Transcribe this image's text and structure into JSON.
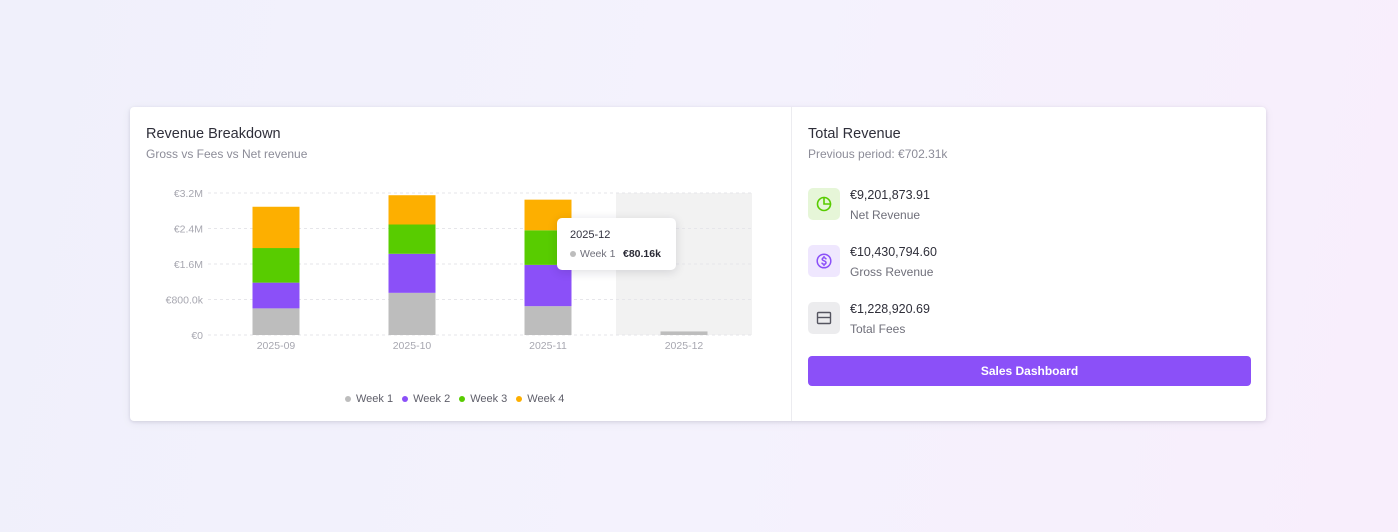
{
  "left": {
    "title": "Revenue Breakdown",
    "subtitle": "Gross vs Fees vs Net revenue"
  },
  "chart_data": {
    "type": "bar",
    "stacked": true,
    "categories": [
      "2025-09",
      "2025-10",
      "2025-11",
      "2025-12"
    ],
    "series": [
      {
        "name": "Week 1",
        "color": "#bdbdbd",
        "values": [
          600,
          950,
          650,
          80.16
        ]
      },
      {
        "name": "Week 2",
        "color": "#8b50f8",
        "values": [
          580,
          880,
          930,
          0
        ]
      },
      {
        "name": "Week 3",
        "color": "#58cc00",
        "values": [
          780,
          660,
          780,
          0
        ]
      },
      {
        "name": "Week 4",
        "color": "#fdaf00",
        "values": [
          930,
          660,
          690,
          0
        ]
      }
    ],
    "y_ticks": [
      "€0",
      "€800.0k",
      "€1.6M",
      "€2.4M",
      "€3.2M"
    ],
    "ylim": [
      0,
      3200
    ],
    "unit": "€k",
    "grid": "horizontal dashed",
    "legend_position": "bottom",
    "highlighted_category": "2025-12"
  },
  "tooltip": {
    "title": "2025-12",
    "label": "Week 1",
    "value": "€80.16k",
    "dot_color": "#bdbdbd"
  },
  "right": {
    "title": "Total Revenue",
    "subtitle": "Previous period: €702.31k",
    "metrics": [
      {
        "value": "€9,201,873.91",
        "label": "Net Revenue",
        "icon": "pie-chart-icon",
        "icon_color": "#58cc00",
        "icon_bg": "#e6f6d8"
      },
      {
        "value": "€10,430,794.60",
        "label": "Gross Revenue",
        "icon": "dollar-coin-icon",
        "icon_color": "#8b50f8",
        "icon_bg": "#efe7fe"
      },
      {
        "value": "€1,228,920.69",
        "label": "Total Fees",
        "icon": "wallet-icon",
        "icon_color": "#555560",
        "icon_bg": "#ececee"
      }
    ],
    "button_label": "Sales Dashboard"
  },
  "colors": {
    "accent": "#8b50f8",
    "net": "#58cc00",
    "fees": "#bdbdbd",
    "week4": "#fdaf00"
  }
}
